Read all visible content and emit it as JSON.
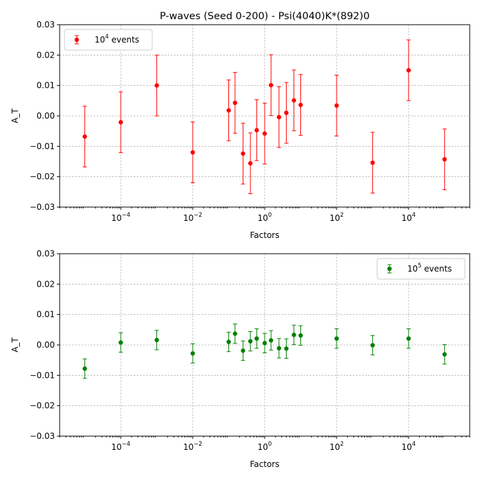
{
  "chart_data": [
    {
      "type": "scatter",
      "title": "P-waves (Seed 0-200) - Psi(4040)K*(892)0",
      "xlabel": "Factors",
      "ylabel": "A_T",
      "xscale": "log",
      "xlim": [
        2e-06,
        500000
      ],
      "ylim": [
        -0.03,
        0.03
      ],
      "xticks": [
        {
          "value": 0.0001,
          "base": "10",
          "exp": "−4"
        },
        {
          "value": 0.01,
          "base": "10",
          "exp": "−2"
        },
        {
          "value": 1,
          "base": "10",
          "exp": "0"
        },
        {
          "value": 100,
          "base": "10",
          "exp": "2"
        },
        {
          "value": 10000,
          "base": "10",
          "exp": "4"
        }
      ],
      "yticks": [
        {
          "value": -0.03,
          "label": "−0.03"
        },
        {
          "value": -0.02,
          "label": "−0.02"
        },
        {
          "value": -0.01,
          "label": "−0.01"
        },
        {
          "value": 0.0,
          "label": "0.00"
        },
        {
          "value": 0.01,
          "label": "0.01"
        },
        {
          "value": 0.02,
          "label": "0.02"
        },
        {
          "value": 0.03,
          "label": "0.03"
        }
      ],
      "grid": true,
      "legend_position": "top-left",
      "color": "#ff0000",
      "series": [
        {
          "legend_base": "10",
          "legend_exp": "4",
          "legend_suffix": " events",
          "x": [
            1e-05,
            0.0001,
            0.001,
            0.01,
            0.1,
            0.15,
            0.25,
            0.4,
            0.6,
            1.0,
            1.5,
            2.5,
            4,
            6.5,
            10,
            100,
            1000,
            10000,
            100000
          ],
          "y": [
            -0.0068,
            -0.0021,
            0.01,
            -0.012,
            0.0018,
            0.0043,
            -0.0124,
            -0.0156,
            -0.0047,
            -0.0058,
            0.0101,
            -0.0004,
            0.001,
            0.0051,
            0.0036,
            0.0034,
            -0.0154,
            0.015,
            -0.0143
          ],
          "yerr": 0.01
        }
      ]
    },
    {
      "type": "scatter",
      "title": "",
      "xlabel": "Factors",
      "ylabel": "A_T",
      "xscale": "log",
      "xlim": [
        2e-06,
        500000
      ],
      "ylim": [
        -0.03,
        0.03
      ],
      "xticks": [
        {
          "value": 0.0001,
          "base": "10",
          "exp": "−4"
        },
        {
          "value": 0.01,
          "base": "10",
          "exp": "−2"
        },
        {
          "value": 1,
          "base": "10",
          "exp": "0"
        },
        {
          "value": 100,
          "base": "10",
          "exp": "2"
        },
        {
          "value": 10000,
          "base": "10",
          "exp": "4"
        }
      ],
      "yticks": [
        {
          "value": -0.03,
          "label": "−0.03"
        },
        {
          "value": -0.02,
          "label": "−0.02"
        },
        {
          "value": -0.01,
          "label": "−0.01"
        },
        {
          "value": 0.0,
          "label": "0.00"
        },
        {
          "value": 0.01,
          "label": "0.01"
        },
        {
          "value": 0.02,
          "label": "0.02"
        },
        {
          "value": 0.03,
          "label": "0.03"
        }
      ],
      "grid": true,
      "legend_position": "top-right",
      "color": "#008000",
      "series": [
        {
          "legend_base": "10",
          "legend_exp": "5",
          "legend_suffix": " events",
          "x": [
            1e-05,
            0.0001,
            0.001,
            0.01,
            0.1,
            0.15,
            0.25,
            0.4,
            0.6,
            1.0,
            1.5,
            2.5,
            4,
            6.5,
            10,
            100,
            1000,
            10000,
            100000
          ],
          "y": [
            -0.0078,
            0.0008,
            0.0016,
            -0.0028,
            0.001,
            0.0037,
            -0.0019,
            0.0012,
            0.0021,
            0.0006,
            0.0015,
            -0.0011,
            -0.0012,
            0.0033,
            0.0031,
            0.0021,
            -0.0001,
            0.0021,
            -0.0031
          ],
          "yerr": 0.0032
        }
      ]
    }
  ]
}
